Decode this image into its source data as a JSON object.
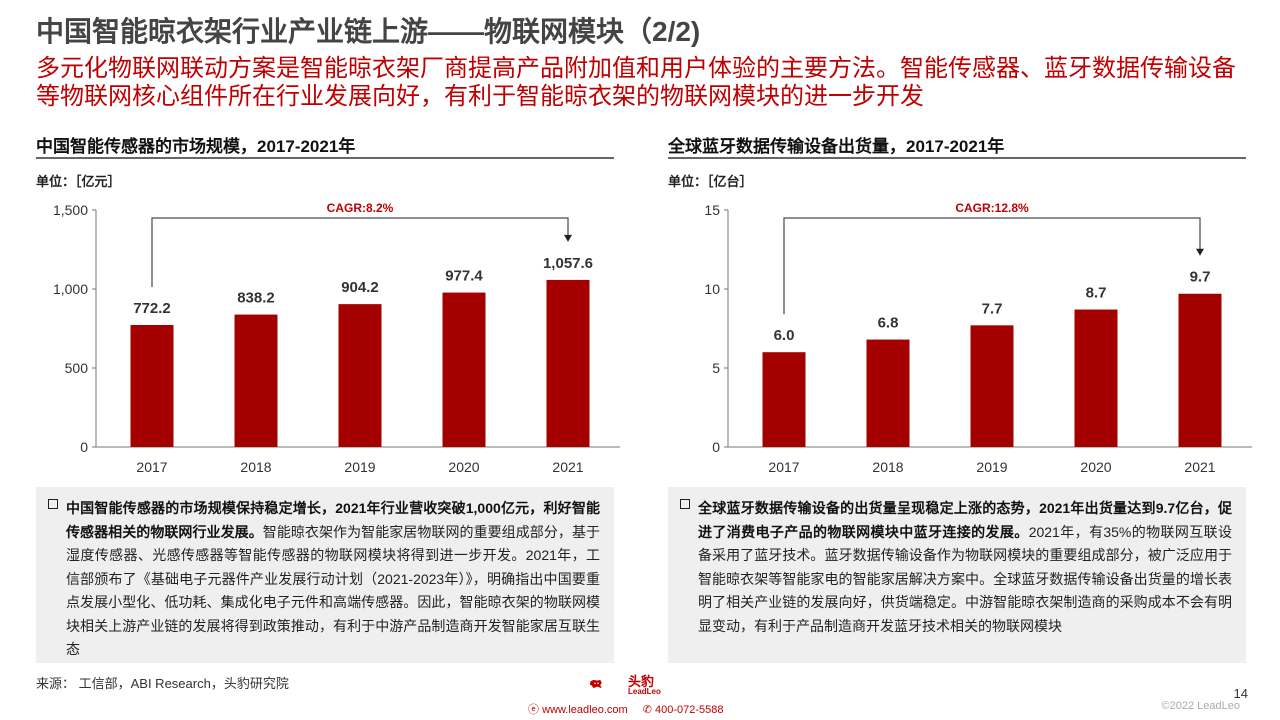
{
  "page": {
    "title": "中国智能晾衣架行业产业链上游——物联网模块（2/2)",
    "subtitle": "多元化物联网联动方案是智能晾衣架厂商提高产品附加值和用户体验的主要方法。智能传感器、蓝牙数据传输设备等物联网核心组件所在行业发展向好，有利于智能晾衣架的物联网模块的进一步开发",
    "source": "来源：  工信部，ABI Research，头豹研究院",
    "page_number": "14",
    "copyright": "©2022 LeadLeo",
    "logo_cn": "头豹",
    "logo_en": "LeadLeo",
    "website": "www.leadleo.com",
    "phone": "400-072-5588",
    "brand_color": "#c00000",
    "bar_color": "#a50000"
  },
  "left": {
    "title": "中国智能传感器的市场规模，2017-2021年",
    "unit": "单位：［亿元］",
    "text_bold": "中国智能传感器的市场规模保持稳定增长，2021年行业营收突破1,000亿元，利好智能传感器相关的物联网行业发展。",
    "text_rest": "智能晾衣架作为智能家居物联网的重要组成部分，基于湿度传感器、光感传感器等智能传感器的物联网模块将得到进一步开发。2021年，工信部颁布了《基础电子元器件产业发展行动计划（2021-2023年）》，明确指出中国要重点发展小型化、低功耗、集成化电子元件和高端传感器。因此，智能晾衣架的物联网模块相关上游产业链的发展将得到政策推动，有利于中游产品制造商开发智能家居互联生态"
  },
  "right": {
    "title": "全球蓝牙数据传输设备出货量，2017-2021年",
    "unit": "单位：［亿台］",
    "text_bold": "全球蓝牙数据传输设备的出货量呈现稳定上涨的态势，2021年出货量达到9.7亿台，促进了消费电子产品的物联网模块中蓝牙连接的发展。",
    "text_rest": "2021年，有35%的物联网互联设备采用了蓝牙技术。蓝牙数据传输设备作为物联网模块的重要组成部分，被广泛应用于智能晾衣架等智能家电的智能家居解决方案中。全球蓝牙数据传输设备出货量的增长表明了相关产业链的发展向好，供货端稳定。中游智能晾衣架制造商的采购成本不会有明显变动，有利于产品制造商开发蓝牙技术相关的物联网模块"
  },
  "chart_data": [
    {
      "type": "bar",
      "title": "中国智能传感器的市场规模，2017-2021年",
      "ylabel": "单位：［亿元］",
      "categories": [
        "2017",
        "2018",
        "2019",
        "2020",
        "2021"
      ],
      "values": [
        772.2,
        838.2,
        904.2,
        977.4,
        1057.6
      ],
      "value_labels": [
        "772.2",
        "838.2",
        "904.2",
        "977.4",
        "1,057.6"
      ],
      "ylim": [
        0,
        1500
      ],
      "yticks": [
        0,
        500,
        1000,
        1500
      ],
      "ytick_labels": [
        "0",
        "500",
        "1,000",
        "1,500"
      ],
      "annotation": "CAGR:8.2%",
      "grid": false
    },
    {
      "type": "bar",
      "title": "全球蓝牙数据传输设备出货量，2017-2021年",
      "ylabel": "单位：［亿台］",
      "categories": [
        "2017",
        "2018",
        "2019",
        "2020",
        "2021"
      ],
      "values": [
        6.0,
        6.8,
        7.7,
        8.7,
        9.7
      ],
      "value_labels": [
        "6.0",
        "6.8",
        "7.7",
        "8.7",
        "9.7"
      ],
      "ylim": [
        0,
        15
      ],
      "yticks": [
        0,
        5,
        10,
        15
      ],
      "ytick_labels": [
        "0",
        "5",
        "10",
        "15"
      ],
      "annotation": "CAGR:12.8%",
      "grid": false
    }
  ]
}
